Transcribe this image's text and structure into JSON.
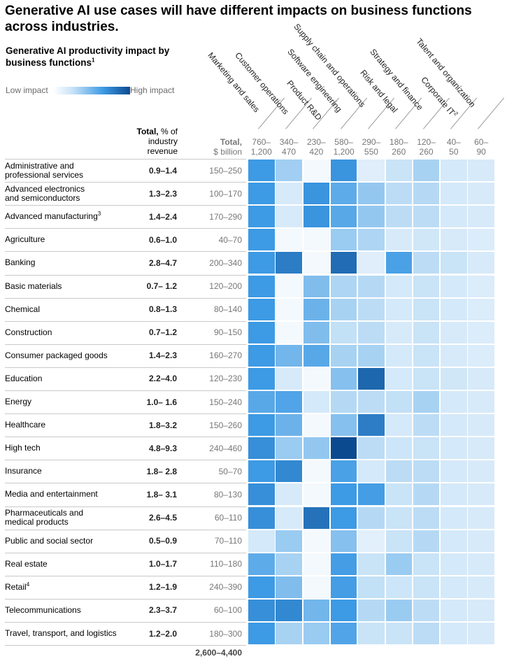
{
  "title": "Generative AI use cases will have different impacts on business functions across industries.",
  "subtitle_text": "Generative AI productivity impact by business functions",
  "subtitle_footnote": "1",
  "legend": {
    "low": "Low impact",
    "high": "High impact"
  },
  "colors": {
    "scale": [
      "#ffffff",
      "#c9e3f7",
      "#3d9ae4",
      "#0c4a90"
    ],
    "rule": "#c9c9c9"
  },
  "total_pct_header": {
    "bold": "Total,",
    "line1_rest": " % of",
    "line2": "industry",
    "line3": "revenue"
  },
  "total_usd_header": {
    "line1": "Total,",
    "line2": "$ billion"
  },
  "grand_total": "2,600–4,400",
  "chart_data": {
    "type": "heatmap",
    "title": "Generative AI productivity impact by business functions",
    "colorscale": {
      "low": "Low impact",
      "high": "High impact"
    },
    "functions": [
      {
        "name": "Marketing and sales",
        "footnote": "",
        "range_top": "760–",
        "range_bottom": "1,200"
      },
      {
        "name": "Customer operations",
        "footnote": "",
        "range_top": "340–",
        "range_bottom": "470"
      },
      {
        "name": "Product R&D",
        "footnote": "",
        "range_top": "230–",
        "range_bottom": "420"
      },
      {
        "name": "Software engineering",
        "footnote": "",
        "range_top": "580–",
        "range_bottom": "1,200"
      },
      {
        "name": "Supply chain and operations",
        "footnote": "",
        "range_top": "290–",
        "range_bottom": "550"
      },
      {
        "name": "Risk and legal",
        "footnote": "",
        "range_top": "180–",
        "range_bottom": "260"
      },
      {
        "name": "Strategy and finance",
        "footnote": "",
        "range_top": "120–",
        "range_bottom": "260"
      },
      {
        "name": "Corporate IT",
        "footnote": "2",
        "range_top": "40–",
        "range_bottom": "50"
      },
      {
        "name": "Talent and organization",
        "footnote": "",
        "range_top": "60–",
        "range_bottom": "90"
      }
    ],
    "industries": [
      {
        "name": "Administrative and professional services",
        "lines": [
          "Administrative and",
          "professional services"
        ],
        "footnote": "",
        "total_pct": "0.9–1.4",
        "total_usd": "150–250",
        "impact": [
          0.72,
          0.42,
          0.06,
          0.74,
          0.18,
          0.3,
          0.4,
          0.24,
          0.22
        ]
      },
      {
        "name": "Advanced electronics and semiconductors",
        "lines": [
          "Advanced electronics",
          "and semiconductors"
        ],
        "footnote": "",
        "total_pct": "1.3–2.3",
        "total_usd": "100–170",
        "impact": [
          0.72,
          0.22,
          0.74,
          0.62,
          0.46,
          0.34,
          0.36,
          0.24,
          0.22
        ]
      },
      {
        "name": "Advanced manufacturing",
        "lines": [
          "Advanced manufacturing"
        ],
        "footnote": "3",
        "total_pct": "1.4–2.4",
        "total_usd": "170–290",
        "impact": [
          0.72,
          0.22,
          0.74,
          0.64,
          0.46,
          0.34,
          0.34,
          0.24,
          0.22
        ]
      },
      {
        "name": "Agriculture",
        "lines": [
          "Agriculture"
        ],
        "footnote": "",
        "total_pct": "0.6–1.0",
        "total_usd": "40–70",
        "impact": [
          0.72,
          0.06,
          0.06,
          0.44,
          0.38,
          0.22,
          0.26,
          0.22,
          0.2
        ]
      },
      {
        "name": "Banking",
        "lines": [
          "Banking"
        ],
        "footnote": "",
        "total_pct": "2.8–4.7",
        "total_usd": "200–340",
        "impact": [
          0.72,
          0.82,
          0.06,
          0.88,
          0.18,
          0.68,
          0.34,
          0.3,
          0.22
        ]
      },
      {
        "name": "Basic materials",
        "lines": [
          "Basic materials"
        ],
        "footnote": "",
        "total_pct": "0.7– 1.2",
        "total_usd": "120–200",
        "impact": [
          0.72,
          0.06,
          0.52,
          0.38,
          0.36,
          0.24,
          0.3,
          0.24,
          0.2
        ]
      },
      {
        "name": "Chemical",
        "lines": [
          "Chemical"
        ],
        "footnote": "",
        "total_pct": "0.8–1.3",
        "total_usd": "80–140",
        "impact": [
          0.72,
          0.06,
          0.58,
          0.4,
          0.34,
          0.24,
          0.3,
          0.24,
          0.2
        ]
      },
      {
        "name": "Construction",
        "lines": [
          "Construction"
        ],
        "footnote": "",
        "total_pct": "0.7–1.2",
        "total_usd": "90–150",
        "impact": [
          0.72,
          0.06,
          0.52,
          0.32,
          0.34,
          0.22,
          0.3,
          0.22,
          0.2
        ]
      },
      {
        "name": "Consumer packaged goods",
        "lines": [
          "Consumer packaged goods"
        ],
        "footnote": "",
        "total_pct": "1.4–2.3",
        "total_usd": "160–270",
        "impact": [
          0.72,
          0.56,
          0.64,
          0.4,
          0.4,
          0.24,
          0.3,
          0.22,
          0.2
        ]
      },
      {
        "name": "Education",
        "lines": [
          "Education"
        ],
        "footnote": "",
        "total_pct": "2.2–4.0",
        "total_usd": "120–230",
        "impact": [
          0.72,
          0.22,
          0.06,
          0.5,
          0.9,
          0.24,
          0.3,
          0.26,
          0.22
        ]
      },
      {
        "name": "Energy",
        "lines": [
          "Energy"
        ],
        "footnote": "",
        "total_pct": "1.0– 1.6",
        "total_usd": "150–240",
        "impact": [
          0.64,
          0.66,
          0.24,
          0.36,
          0.34,
          0.32,
          0.4,
          0.24,
          0.22
        ]
      },
      {
        "name": "Healthcare",
        "lines": [
          "Healthcare"
        ],
        "footnote": "",
        "total_pct": "1.8–3.2",
        "total_usd": "150–260",
        "impact": [
          0.72,
          0.58,
          0.06,
          0.5,
          0.82,
          0.24,
          0.34,
          0.24,
          0.22
        ]
      },
      {
        "name": "High tech",
        "lines": [
          "High tech"
        ],
        "footnote": "",
        "total_pct": "4.8–9.3",
        "total_usd": "240–460",
        "impact": [
          0.76,
          0.44,
          0.46,
          1.0,
          0.34,
          0.28,
          0.3,
          0.24,
          0.22
        ]
      },
      {
        "name": "Insurance",
        "lines": [
          "Insurance"
        ],
        "footnote": "",
        "total_pct": "1.8– 2.8",
        "total_usd": "50–70",
        "impact": [
          0.72,
          0.78,
          0.06,
          0.68,
          0.24,
          0.34,
          0.34,
          0.24,
          0.22
        ]
      },
      {
        "name": "Media and entertainment",
        "lines": [
          "Media and entertainment"
        ],
        "footnote": "",
        "total_pct": "1.8– 3.1",
        "total_usd": "80–130",
        "impact": [
          0.76,
          0.22,
          0.06,
          0.72,
          0.7,
          0.3,
          0.36,
          0.24,
          0.22
        ]
      },
      {
        "name": "Pharmaceuticals and medical products",
        "lines": [
          "Pharmaceuticals and",
          "medical products"
        ],
        "footnote": "",
        "total_pct": "2.6–4.5",
        "total_usd": "60–110",
        "impact": [
          0.76,
          0.22,
          0.86,
          0.72,
          0.36,
          0.3,
          0.34,
          0.24,
          0.22
        ]
      },
      {
        "name": "Public and social sector",
        "lines": [
          "Public and social sector"
        ],
        "footnote": "",
        "total_pct": "0.5–0.9",
        "total_usd": "70–110",
        "impact": [
          0.24,
          0.44,
          0.06,
          0.5,
          0.16,
          0.3,
          0.36,
          0.24,
          0.22
        ]
      },
      {
        "name": "Real estate",
        "lines": [
          "Real estate"
        ],
        "footnote": "",
        "total_pct": "1.0–1.7",
        "total_usd": "110–180",
        "impact": [
          0.62,
          0.4,
          0.06,
          0.7,
          0.3,
          0.44,
          0.3,
          0.24,
          0.22
        ]
      },
      {
        "name": "Retail",
        "lines": [
          "Retail"
        ],
        "footnote": "4",
        "total_pct": "1.2–1.9",
        "total_usd": "240–390",
        "impact": [
          0.72,
          0.52,
          0.06,
          0.7,
          0.32,
          0.28,
          0.3,
          0.24,
          0.22
        ]
      },
      {
        "name": "Telecommunications",
        "lines": [
          "Telecommunications"
        ],
        "footnote": "",
        "total_pct": "2.3–3.7",
        "total_usd": "60–100",
        "impact": [
          0.76,
          0.78,
          0.56,
          0.72,
          0.36,
          0.44,
          0.34,
          0.24,
          0.22
        ]
      },
      {
        "name": "Travel, transport, and logistics",
        "lines": [
          "Travel, transport, and logistics"
        ],
        "footnote": "",
        "total_pct": "1.2–2.0",
        "total_usd": "180–300",
        "impact": [
          0.72,
          0.4,
          0.44,
          0.66,
          0.3,
          0.3,
          0.34,
          0.24,
          0.22
        ]
      }
    ]
  }
}
